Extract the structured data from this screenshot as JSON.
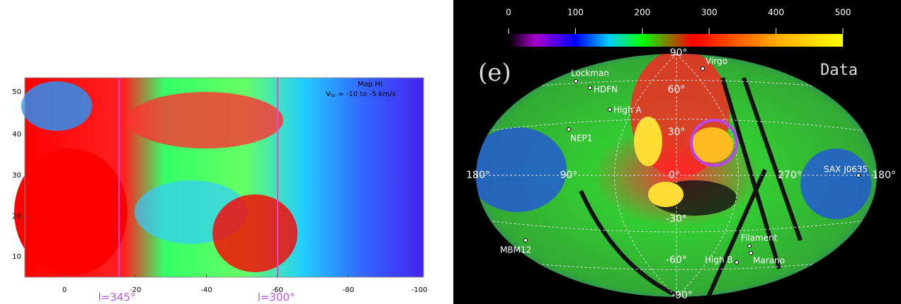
{
  "left_panel": {
    "annotation": {
      "line1": "Map HI",
      "v": "V",
      "sub": "lsr",
      "rest": "= -10 to -5 km/s"
    },
    "yticks": [
      50,
      40,
      30,
      20,
      10
    ],
    "xticks": [
      0,
      -20,
      -40,
      -60,
      -80,
      -100
    ],
    "longitude_labels": [
      "l=345°",
      "l=300°"
    ]
  },
  "right_panel": {
    "colorbar_ticks": [
      0,
      100,
      200,
      300,
      400,
      500
    ],
    "panel_label": "(e)",
    "data_label": "Data",
    "grid_labels": [
      "90°",
      "60°",
      "30°",
      "0°",
      "-30°",
      "-60°",
      "-90°",
      "180°",
      "90°",
      "270°",
      "180°"
    ],
    "sources": [
      "Virgo",
      "Lockman",
      "HDFN",
      "High A",
      "NEP1",
      "SAX J0635",
      "MBM12",
      "Filament",
      "High B",
      "Marano"
    ]
  }
}
